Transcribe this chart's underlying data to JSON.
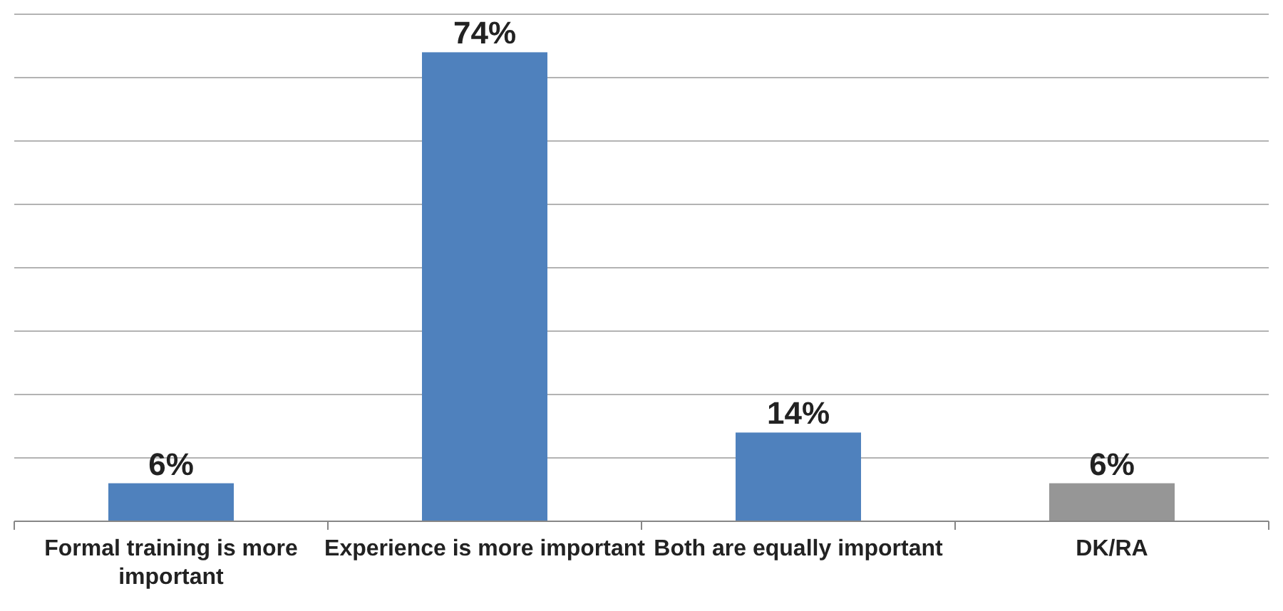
{
  "chart_data": {
    "type": "bar",
    "categories": [
      "Formal training is more important",
      "Experience is more important",
      "Both are equally important",
      "DK/RA"
    ],
    "values": [
      6,
      74,
      14,
      6
    ],
    "colors": [
      "#4f81bd",
      "#4f81bd",
      "#4f81bd",
      "#969696"
    ],
    "value_labels": [
      "6%",
      "74%",
      "14%",
      "6%"
    ],
    "ylim": [
      0,
      80
    ],
    "yticks": [
      {
        "value": 0,
        "label": null
      },
      {
        "value": 10,
        "label": null
      },
      {
        "value": 20,
        "label": null
      },
      {
        "value": 30,
        "label": null
      },
      {
        "value": 40,
        "label": null
      },
      {
        "value": 50,
        "label": null
      },
      {
        "value": 60,
        "label": null
      },
      {
        "value": 70,
        "label": null
      },
      {
        "value": 80,
        "label": null
      }
    ],
    "grid": "y",
    "tick_labels": "x"
  }
}
